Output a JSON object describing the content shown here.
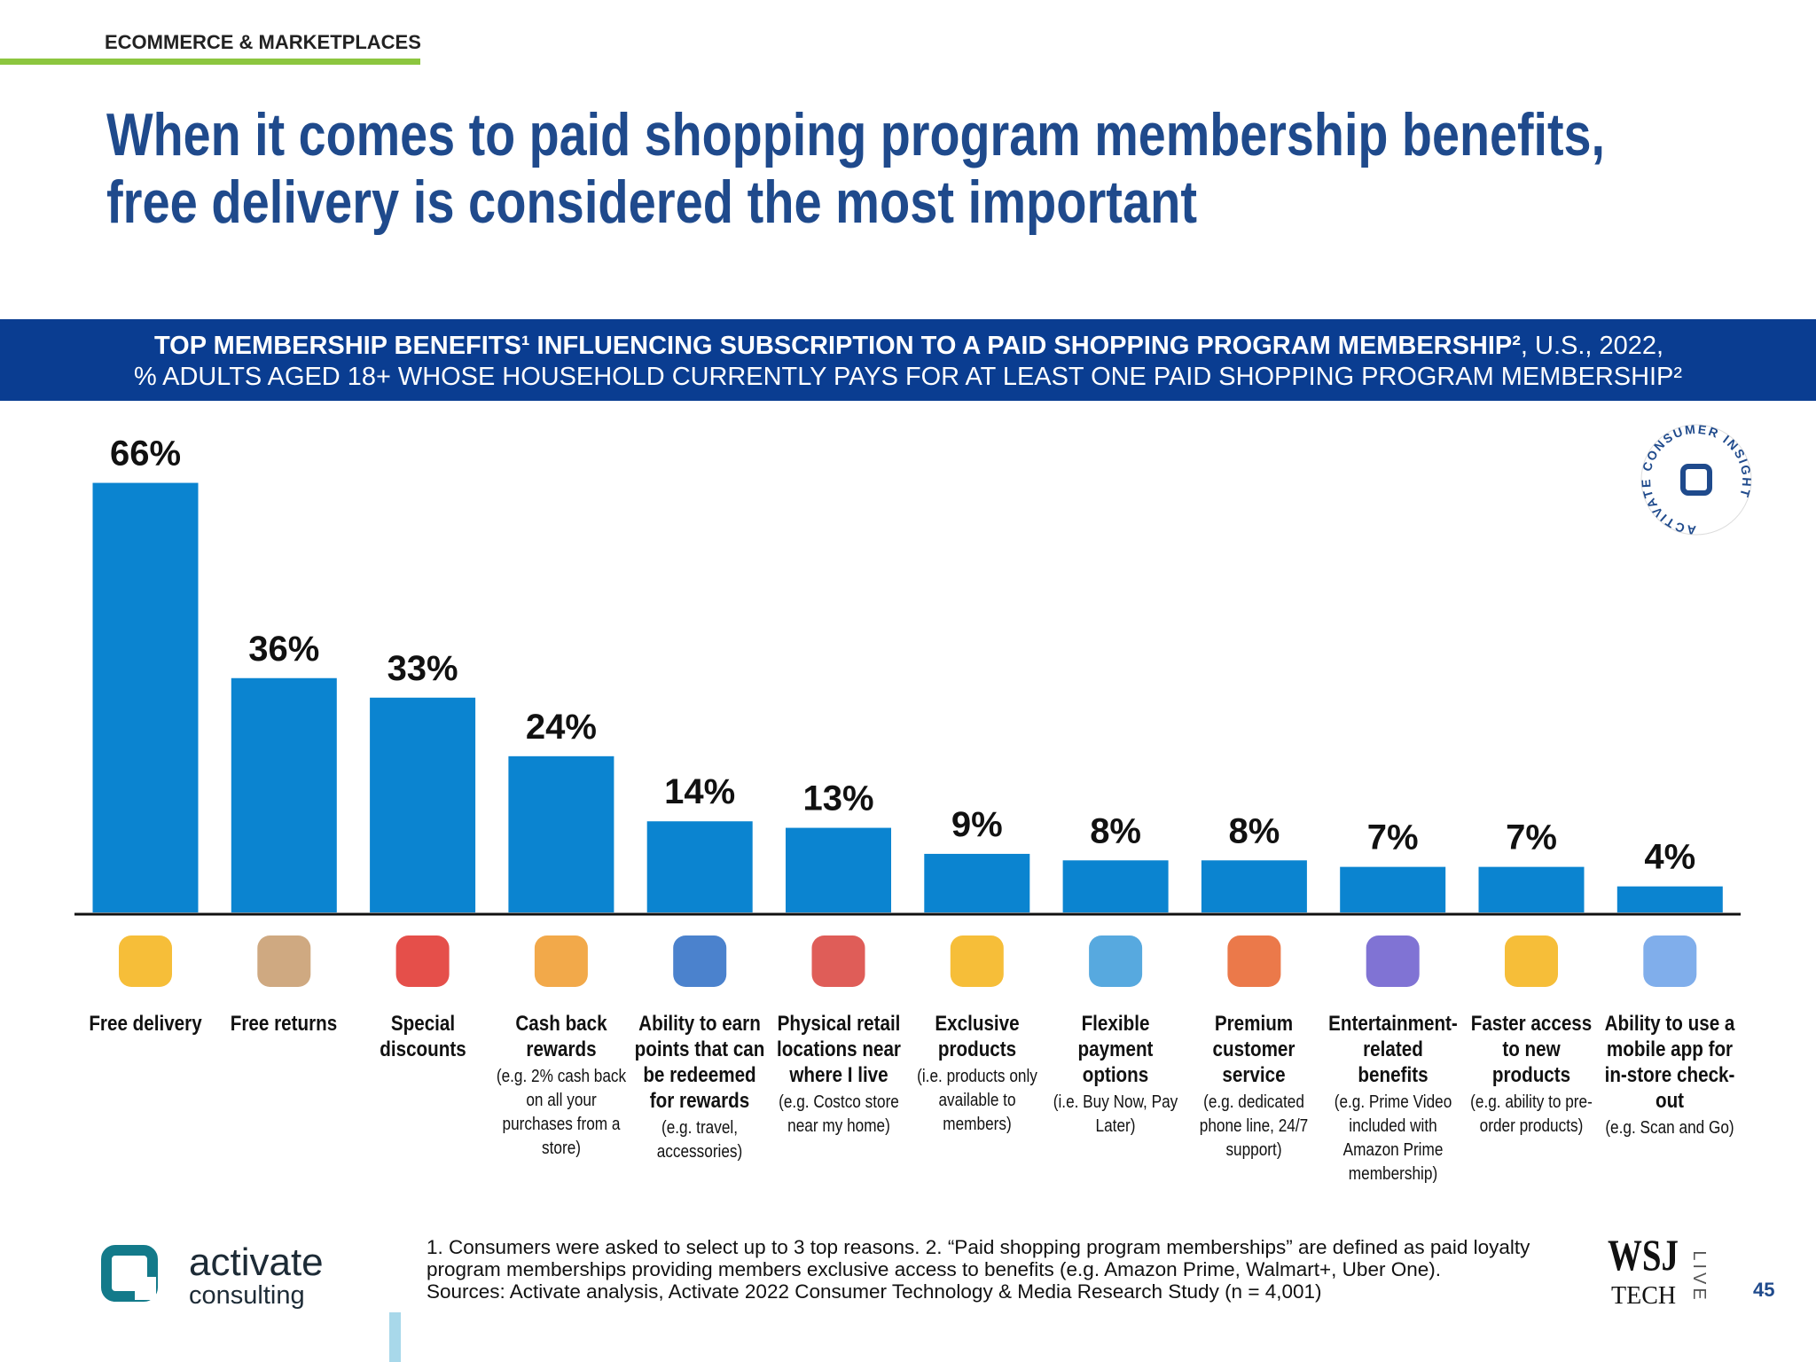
{
  "header": {
    "section": "ECOMMERCE & MARKETPLACES",
    "title": [
      "When it comes to paid shopping program membership benefits,",
      "free delivery is considered the most important"
    ]
  },
  "chart_data": {
    "type": "bar",
    "subtitle_bold": "TOP MEMBERSHIP BENEFITS¹ INFLUENCING SUBSCRIPTION TO A PAID SHOPPING PROGRAM MEMBERSHIP²",
    "subtitle_rest": ", U.S., 2022,",
    "subtitle_line2": "% ADULTS AGED 18+ WHOSE HOUSEHOLD CURRENTLY PAYS FOR AT LEAST ONE PAID SHOPPING PROGRAM MEMBERSHIP²",
    "categories": [
      "Free delivery",
      "Free returns",
      "Special discounts",
      "Cash back rewards",
      "Ability to earn points that can be redeemed for rewards",
      "Physical retail locations near where I live",
      "Exclusive products",
      "Flexible payment options",
      "Premium customer service",
      "Entertainment-related benefits",
      "Faster access to new products",
      "Ability to use a mobile app for in-store check-out"
    ],
    "category_notes": [
      null,
      null,
      null,
      "(e.g. 2% cash back on all your purchases from a store)",
      "(e.g. travel, accessories)",
      "(e.g. Costco store near my home)",
      "(i.e. products only available to members)",
      "(i.e. Buy Now, Pay Later)",
      "(e.g. dedicated phone line, 24/7 support)",
      "(e.g. Prime Video included with Amazon Prime membership)",
      "(e.g. ability to pre-order products)",
      "(e.g. Scan and Go)"
    ],
    "values": [
      66,
      36,
      33,
      24,
      14,
      13,
      9,
      8,
      8,
      7,
      7,
      4
    ],
    "value_labels": [
      "66%",
      "36%",
      "33%",
      "24%",
      "14%",
      "13%",
      "9%",
      "8%",
      "8%",
      "7%",
      "7%",
      "4%"
    ],
    "color": "#0b84d0"
  },
  "footnote": "1. Consumers were asked to select up to 3 top reasons.  2. “Paid shopping program memberships” are defined as paid loyalty program memberships providing members exclusive access to benefits (e.g. Amazon Prime, Walmart+, Uber One).",
  "source": "Sources: Activate analysis, Activate 2022 Consumer Technology & Media Research Study (n = 4,001)",
  "badge": "ACTIVATE CONSUMER INSIGHT",
  "logo": {
    "name": "activate",
    "sub": "consulting"
  },
  "partner": {
    "name": "WSJ",
    "sub": "TECH",
    "tag": "LIVE"
  },
  "page_number": 45
}
